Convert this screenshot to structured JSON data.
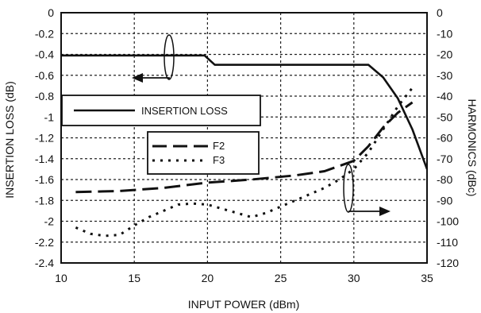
{
  "chart_data": {
    "type": "line",
    "title": "",
    "xlabel": "INPUT POWER (dBm)",
    "ylabel_left": "INSERTION LOSS (dB)",
    "ylabel_right": "HARMONICS (dBc)",
    "xlim": [
      10,
      35
    ],
    "ylim_left": [
      -2.4,
      0
    ],
    "ylim_right": [
      -120,
      0
    ],
    "x_ticks": [
      "10",
      "15",
      "20",
      "25",
      "30",
      "35"
    ],
    "y_left_ticks": [
      "0",
      "-0.2",
      "-0.4",
      "-0.6",
      "-0.8",
      "-1",
      "-1.2",
      "-1.4",
      "-1.6",
      "-1.8",
      "-2",
      "-2.2",
      "-2.4"
    ],
    "y_right_ticks": [
      "0",
      "-10",
      "-20",
      "-30",
      "-40",
      "-50",
      "-60",
      "-70",
      "-80",
      "-90",
      "-100",
      "-110",
      "-120"
    ],
    "grid": true,
    "legend": [
      {
        "label": "INSERTION LOSS"
      },
      {
        "label": "F2"
      },
      {
        "label": "F3"
      }
    ],
    "series": [
      {
        "name": "INSERTION LOSS",
        "axis": "left",
        "style": "solid",
        "x": [
          10,
          19.8,
          20.5,
          25,
          30,
          31,
          32,
          33,
          34,
          35
        ],
        "y": [
          -0.41,
          -0.41,
          -0.5,
          -0.5,
          -0.5,
          -0.5,
          -0.62,
          -0.82,
          -1.12,
          -1.5
        ]
      },
      {
        "name": "F2",
        "axis": "right",
        "style": "longdash",
        "x": [
          11,
          14,
          17,
          20,
          23,
          26,
          28,
          30,
          31,
          32,
          33,
          34
        ],
        "y": [
          -86,
          -85.5,
          -84,
          -81.5,
          -80,
          -78,
          -76,
          -71,
          -64,
          -55,
          -48,
          -43
        ]
      },
      {
        "name": "F3",
        "axis": "right",
        "style": "dotted",
        "x": [
          11,
          12,
          13,
          14,
          15,
          16,
          17,
          18,
          19,
          20,
          21,
          22,
          23,
          24,
          25,
          26,
          27,
          28,
          29,
          30,
          31,
          32,
          33,
          34
        ],
        "y": [
          -103,
          -106,
          -107,
          -106.5,
          -102,
          -98,
          -95,
          -92,
          -91.5,
          -92,
          -94,
          -96,
          -98,
          -96,
          -93,
          -90,
          -87,
          -84,
          -80,
          -75,
          -67,
          -56,
          -45,
          -36
        ]
      }
    ]
  }
}
